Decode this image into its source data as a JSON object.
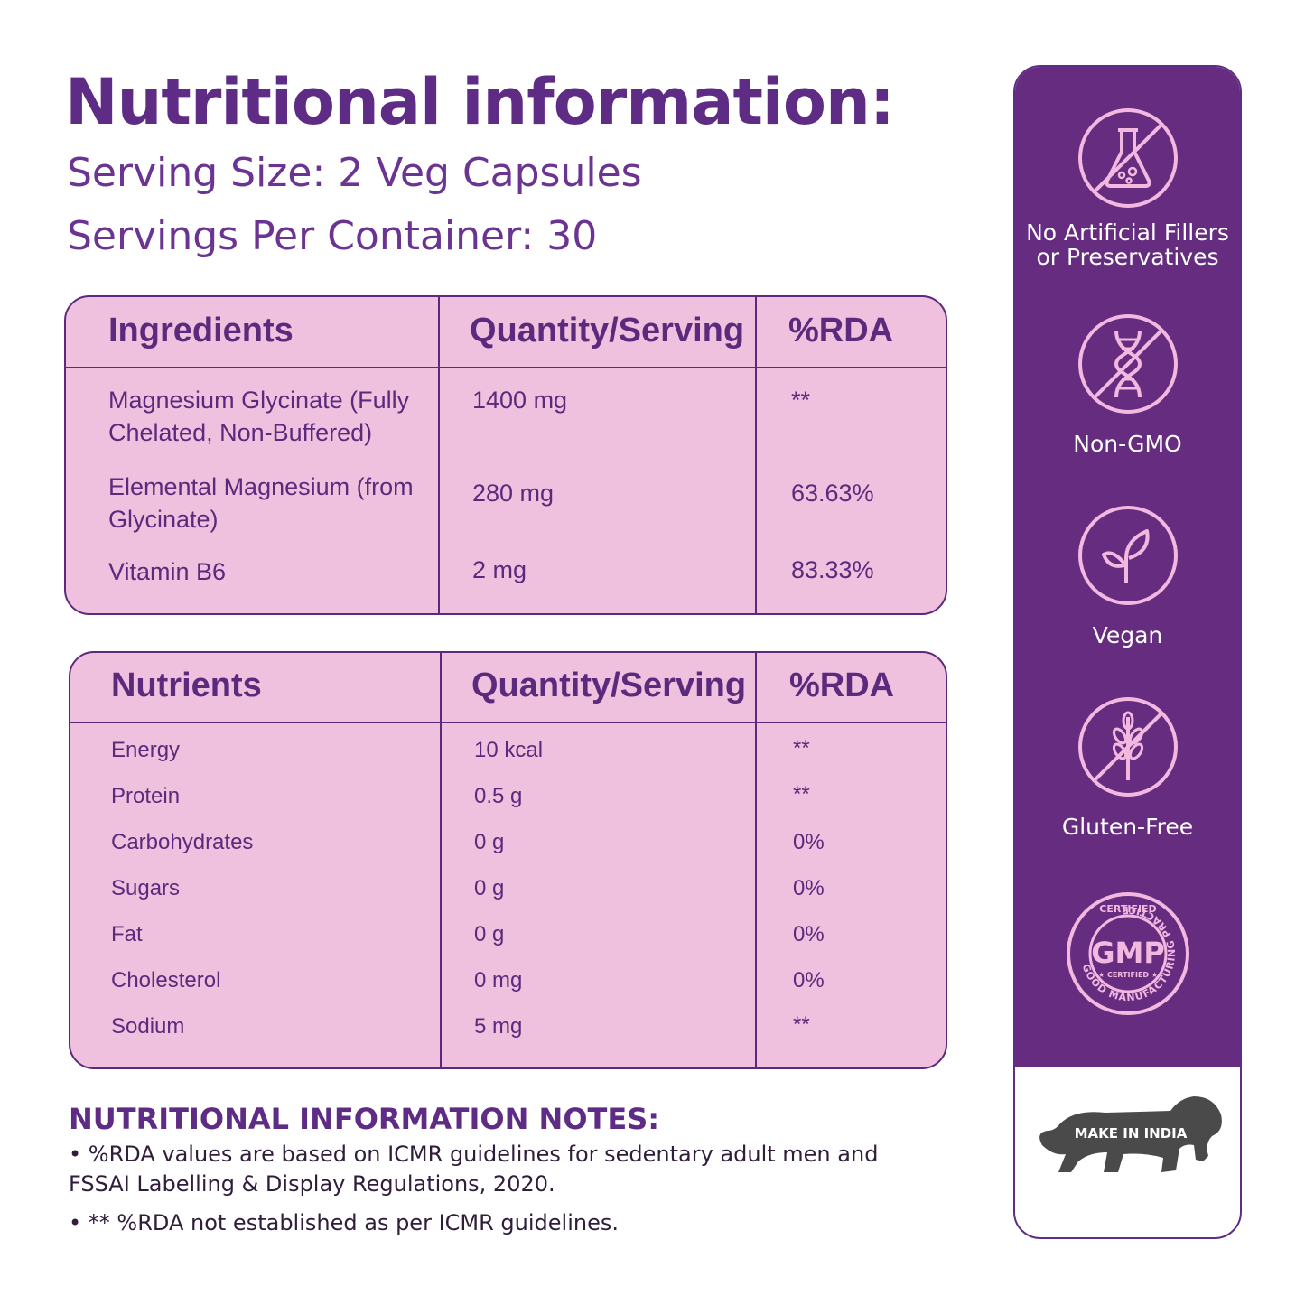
{
  "title": "Nutritional information:",
  "serving_size": "Serving Size: 2 Veg Capsules",
  "servings_per_container": "Servings Per Container: 30",
  "ingredients_table": {
    "headers": [
      "Ingredients",
      "Quantity/Serving",
      "%RDA"
    ],
    "rows": [
      {
        "name_line1": "Magnesium Glycinate (Fully",
        "name_line2": "Chelated, Non-Buffered)",
        "quantity": "1400 mg",
        "rda": "**"
      },
      {
        "name_line1": "Elemental Magnesium (from",
        "name_line2": "Glycinate)",
        "quantity": "280 mg",
        "rda": "63.63%"
      },
      {
        "name_line1": "Vitamin B6",
        "name_line2": "",
        "quantity": "2 mg",
        "rda": "83.33%"
      }
    ]
  },
  "nutrients_table": {
    "headers": [
      "Nutrients",
      "Quantity/Serving",
      "%RDA"
    ],
    "rows": [
      {
        "name": "Energy",
        "quantity": "10 kcal",
        "rda": "**"
      },
      {
        "name": "Protein",
        "quantity": "0.5 g",
        "rda": "**"
      },
      {
        "name": "Carbohydrates",
        "quantity": "0 g",
        "rda": "0%"
      },
      {
        "name": "Sugars",
        "quantity": "0 g",
        "rda": "0%"
      },
      {
        "name": "Fat",
        "quantity": "0 g",
        "rda": "0%"
      },
      {
        "name": "Cholesterol",
        "quantity": "0 mg",
        "rda": "0%"
      },
      {
        "name": "Sodium",
        "quantity": "5 mg",
        "rda": "**"
      }
    ]
  },
  "notes": {
    "title": "NUTRITIONAL INFORMATION NOTES:",
    "note1": "• %RDA values are based on ICMR guidelines for sedentary adult men and FSSAI Labelling & Display Regulations, 2020.",
    "note2": "• ** %RDA not established as per ICMR guidelines."
  },
  "badges": {
    "no_fillers_line1": "No Artificial Fillers",
    "no_fillers_line2": "or Preservatives",
    "non_gmo": "Non-GMO",
    "vegan": "Vegan",
    "gluten_free": "Gluten-Free",
    "gmp_main": "GMP",
    "gmp_certified_top": "CERTIFIED",
    "gmp_certified_small": "★ CERTIFIED ★",
    "gmp_ring": "GOOD MANUFACTURING PRACTICE"
  },
  "make_in_india": "MAKE IN INDIA",
  "colors": {
    "brand_purple": "#5f2c85",
    "panel_purple": "#652c80",
    "table_pink": "#f0c1de",
    "badge_pink": "#f2b8e0"
  }
}
